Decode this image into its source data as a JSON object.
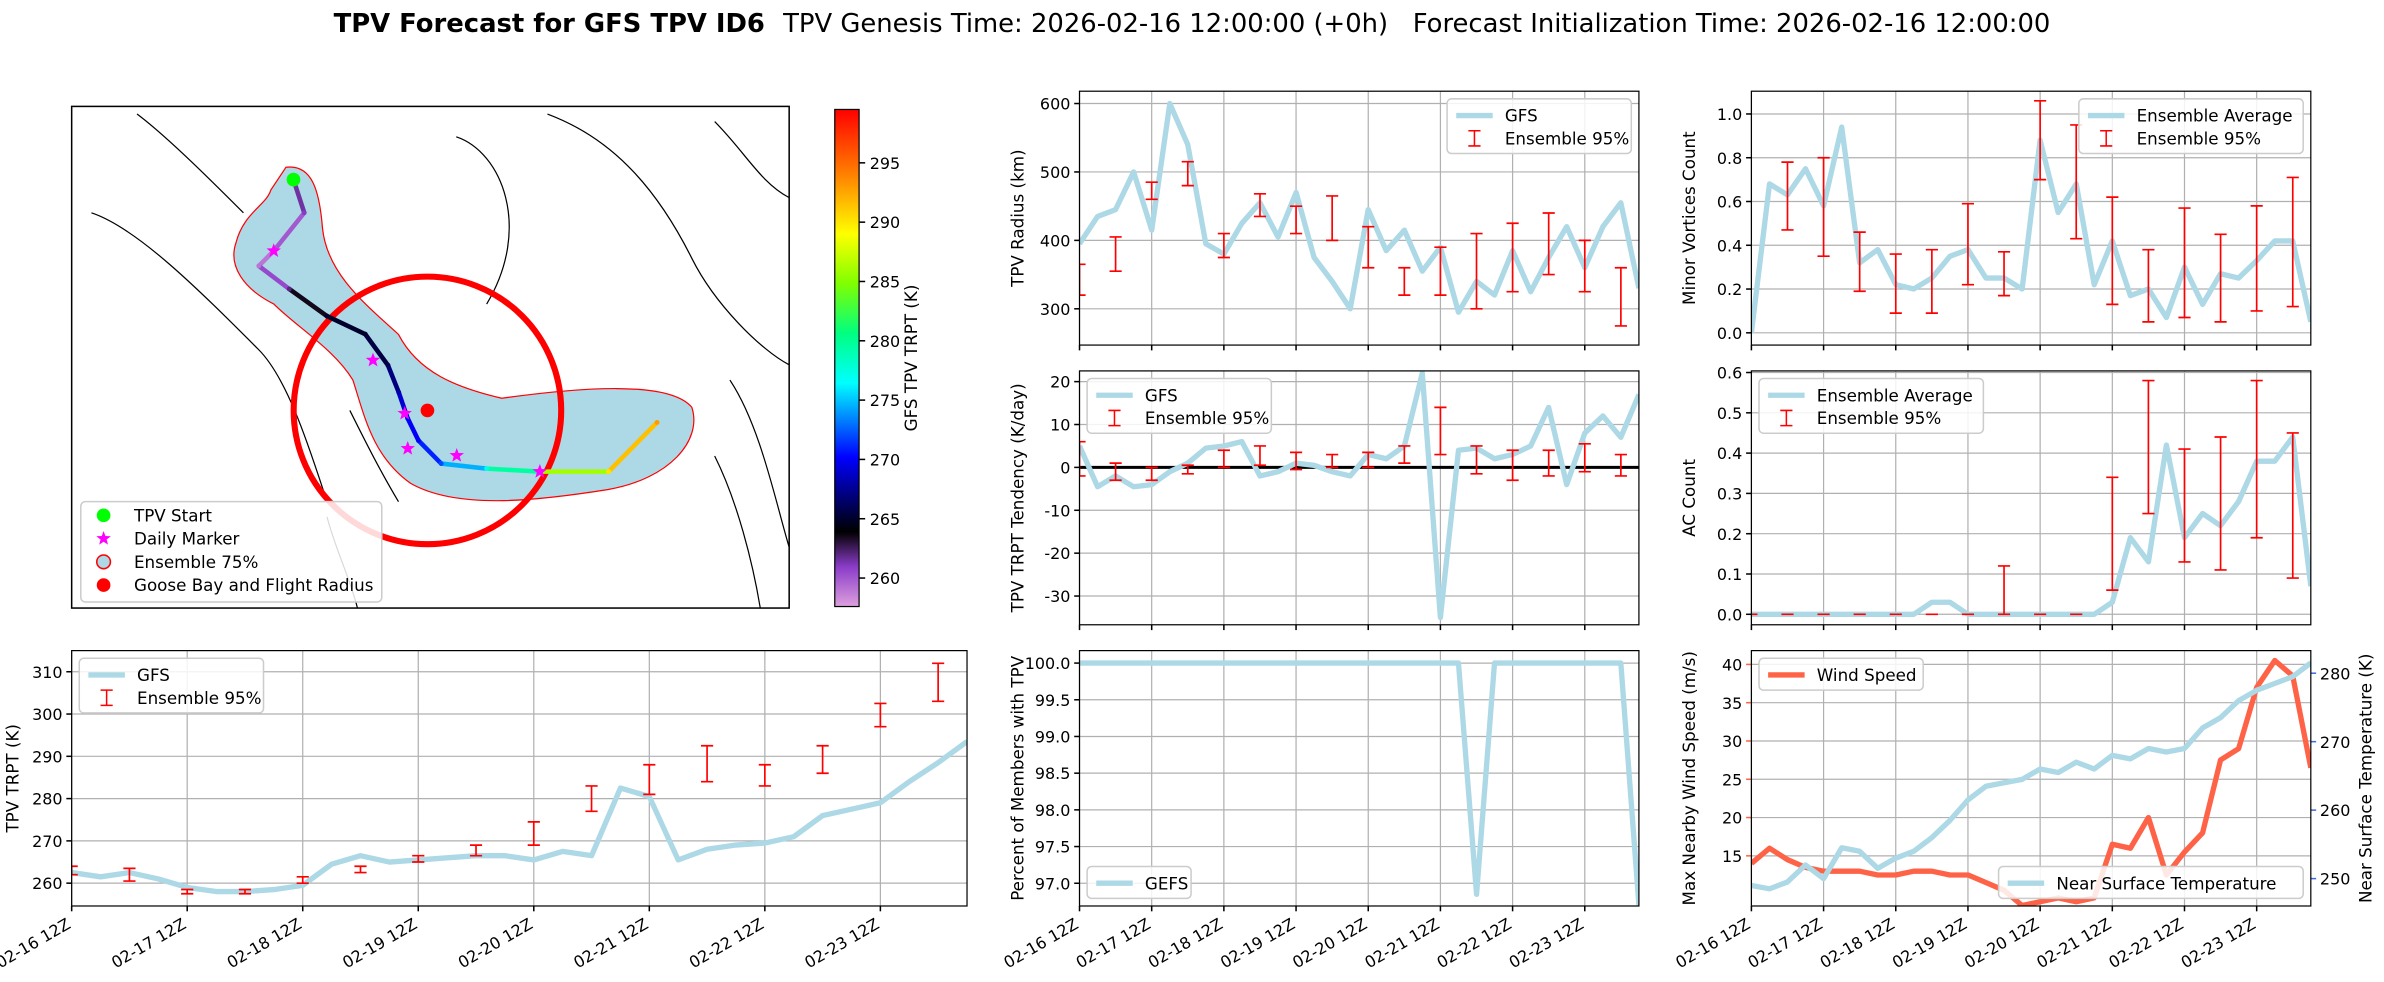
{
  "title": "TPV Forecast for GFS TPV ID6",
  "subtitle": "TPV Genesis Time: 2026-02-16 12:00:00 (+0h)   Forecast Initialization Time: 2026-02-16 12:00:00",
  "chart_data": [
    {
      "type": "track_map",
      "xlim": [
        -130,
        -10
      ],
      "ylim": [
        25,
        75
      ],
      "lon": [
        -92.9,
        -91.1,
        -96.2,
        -98.7,
        -93.6,
        -87.3,
        -80.9,
        -77.1,
        -75.3,
        -73.8,
        -72.0,
        -68.2,
        -60.6,
        -51.7,
        -40.2,
        -32.1
      ],
      "lat": [
        67.7,
        64.4,
        60.6,
        59.1,
        56.8,
        54.1,
        52.3,
        49.2,
        46.5,
        43.9,
        41.7,
        39.4,
        38.9,
        38.6,
        38.6,
        43.5
      ],
      "values": [
        262,
        261,
        259,
        259,
        262,
        265,
        265,
        266,
        268,
        270,
        270,
        272,
        277,
        282,
        290,
        293
      ],
      "markers": {
        "lon": [
          -96.2,
          -79.6,
          -74.3,
          -73.8,
          -65.6,
          -51.7
        ],
        "lat": [
          60.6,
          49.7,
          44.4,
          40.9,
          40.2,
          38.6
        ]
      },
      "goose_bay": {
        "lon": -70.5,
        "lat": 44.7
      },
      "legend_labels": [
        "TPV Start",
        "Daily Marker",
        "Ensemble 75%",
        "Goose Bay and Flight Radius"
      ],
      "colorbar": {
        "label": "GFS TPV TRPT (K)",
        "lim": [
          257.6,
          299.5
        ],
        "ticks": [
          260,
          265,
          270,
          275,
          280,
          285,
          290,
          295
        ]
      }
    },
    {
      "type": "line",
      "ylabel": "TPV TRPT (K)",
      "xlim": [
        0,
        186
      ],
      "ylim": [
        254.6,
        315
      ],
      "yticks": [
        260,
        270,
        280,
        290,
        300,
        310
      ],
      "xticks": [
        {
          "value": 0,
          "label": "02-16 12Z"
        },
        {
          "value": 24,
          "label": "02-17 12Z"
        },
        {
          "value": 48,
          "label": "02-18 12Z"
        },
        {
          "value": 72,
          "label": "02-19 12Z"
        },
        {
          "value": 96,
          "label": "02-20 12Z"
        },
        {
          "value": 120,
          "label": "02-21 12Z"
        },
        {
          "value": 144,
          "label": "02-22 12Z"
        },
        {
          "value": 168,
          "label": "02-23 12Z"
        }
      ],
      "grid": true,
      "legend": "upper left",
      "x": [
        0,
        6,
        12,
        18,
        24,
        30,
        36,
        42,
        48,
        54,
        60,
        66,
        72,
        78,
        84,
        90,
        96,
        102,
        108,
        114,
        120,
        126,
        132,
        138,
        144,
        150,
        156,
        162,
        168,
        174,
        180,
        186
      ],
      "series": [
        {
          "name": "GFS",
          "color": "#add8e6",
          "values": [
            262.5,
            261.5,
            262.5,
            261,
            259,
            258,
            258,
            258.5,
            259.5,
            264.5,
            266.5,
            265,
            265.5,
            266,
            266.5,
            266.5,
            265.5,
            267.5,
            266.5,
            282.5,
            280.5,
            265.5,
            268,
            269,
            269.5,
            271,
            276,
            277.5,
            279,
            284,
            288.5,
            293.5
          ]
        }
      ],
      "ensemble": {
        "name": "Ensemble 95%",
        "color": "#ff0000",
        "x": [
          0,
          12,
          24,
          36,
          48,
          60,
          72,
          84,
          96,
          108,
          120,
          132,
          144,
          156,
          168,
          180
        ],
        "low": [
          262,
          260.5,
          257.5,
          257.5,
          260,
          262.5,
          265,
          266.5,
          269,
          277,
          281,
          284,
          283,
          286,
          297,
          303
        ],
        "high": [
          264,
          263.5,
          258.5,
          258.5,
          261.5,
          264,
          266.5,
          269,
          274.5,
          283,
          288,
          292.5,
          288,
          292.5,
          302.5,
          312
        ]
      }
    },
    {
      "type": "line",
      "ylabel": "TPV Radius (km)",
      "xlim": [
        0,
        186
      ],
      "ylim": [
        247,
        618
      ],
      "yticks": [
        300,
        400,
        500,
        600
      ],
      "xticks": [
        0,
        24,
        48,
        72,
        96,
        120,
        144,
        168
      ],
      "grid": true,
      "legend": "upper right",
      "x": [
        0,
        6,
        12,
        18,
        24,
        30,
        36,
        42,
        48,
        54,
        60,
        66,
        72,
        78,
        84,
        90,
        96,
        102,
        108,
        114,
        120,
        126,
        132,
        138,
        144,
        150,
        156,
        162,
        168,
        174,
        180,
        186
      ],
      "series": [
        {
          "name": "GFS",
          "color": "#add8e6",
          "values": [
            395,
            435,
            445,
            500,
            415,
            600,
            540,
            395,
            380,
            425,
            455,
            405,
            470,
            375,
            340,
            300,
            445,
            385,
            415,
            355,
            390,
            295,
            340,
            320,
            385,
            325,
            375,
            420,
            360,
            420,
            455,
            330
          ]
        }
      ],
      "ensemble": {
        "name": "Ensemble 95%",
        "color": "#ff0000",
        "x": [
          0,
          12,
          24,
          36,
          48,
          60,
          72,
          84,
          96,
          108,
          120,
          132,
          144,
          156,
          168,
          180
        ],
        "low": [
          320,
          355,
          460,
          480,
          375,
          435,
          410,
          400,
          360,
          320,
          320,
          300,
          325,
          350,
          325,
          275
        ],
        "high": [
          365,
          405,
          485,
          515,
          410,
          468,
          450,
          465,
          420,
          360,
          390,
          410,
          425,
          440,
          400,
          360
        ]
      }
    },
    {
      "type": "line",
      "ylabel": "TPV TRPT Tendency (K/day)",
      "xlim": [
        0,
        186
      ],
      "ylim": [
        -36.7,
        22.5
      ],
      "yticks": [
        -30,
        -20,
        -10,
        0,
        10,
        20
      ],
      "xticks": [
        0,
        24,
        48,
        72,
        96,
        120,
        144,
        168
      ],
      "grid": true,
      "legend": "upper left",
      "hline": 0,
      "x": [
        0,
        6,
        12,
        18,
        24,
        30,
        36,
        42,
        48,
        54,
        60,
        66,
        72,
        78,
        84,
        90,
        96,
        102,
        108,
        114,
        120,
        126,
        132,
        138,
        144,
        150,
        156,
        162,
        168,
        174,
        180,
        186
      ],
      "series": [
        {
          "name": "GFS",
          "color": "#add8e6",
          "values": [
            5,
            -4.5,
            -2,
            -4.5,
            -4,
            -1,
            1,
            4.5,
            5,
            6,
            -2,
            -1,
            1,
            0.5,
            -1,
            -2,
            3,
            2,
            5,
            22,
            -35,
            4,
            4.5,
            2,
            3,
            5,
            14,
            -4,
            8,
            12,
            7,
            17
          ]
        }
      ],
      "ensemble": {
        "name": "Ensemble 95%",
        "color": "#ff0000",
        "x": [
          0,
          12,
          24,
          36,
          48,
          60,
          72,
          84,
          96,
          108,
          120,
          132,
          144,
          156,
          168,
          180
        ],
        "low": [
          -2,
          -3,
          -3,
          -1.5,
          0,
          0.5,
          -0.5,
          0,
          0,
          1,
          3,
          -1.5,
          -3,
          -2,
          -1,
          -2
        ],
        "high": [
          6,
          1,
          0,
          0.5,
          4,
          5,
          3.5,
          3,
          3.5,
          5,
          14,
          5,
          4,
          4,
          5.5,
          3
        ]
      }
    },
    {
      "type": "line",
      "ylabel": "Percent of Members with TPV",
      "xlim": [
        0,
        186
      ],
      "ylim": [
        96.69,
        100.17
      ],
      "yticks": [
        {
          "value": 97,
          "label": "97.0"
        },
        97.5,
        {
          "value": 98,
          "label": "98.0"
        },
        98.5,
        {
          "value": 99,
          "label": "99.0"
        },
        99.5,
        {
          "value": 100,
          "label": "100.0"
        }
      ],
      "xticks": [
        {
          "value": 0,
          "label": "02-16 12Z"
        },
        {
          "value": 24,
          "label": "02-17 12Z"
        },
        {
          "value": 48,
          "label": "02-18 12Z"
        },
        {
          "value": 72,
          "label": "02-19 12Z"
        },
        {
          "value": 96,
          "label": "02-20 12Z"
        },
        {
          "value": 120,
          "label": "02-21 12Z"
        },
        {
          "value": 144,
          "label": "02-22 12Z"
        },
        {
          "value": 168,
          "label": "02-23 12Z"
        }
      ],
      "grid": true,
      "legend": "lower left",
      "x": [
        0,
        6,
        12,
        18,
        24,
        30,
        36,
        42,
        48,
        54,
        60,
        66,
        72,
        78,
        84,
        90,
        96,
        102,
        108,
        114,
        120,
        126,
        132,
        138,
        144,
        150,
        156,
        162,
        168,
        174,
        180,
        186
      ],
      "series": [
        {
          "name": "GEFS",
          "color": "#add8e6",
          "values": [
            100,
            100,
            100,
            100,
            100,
            100,
            100,
            100,
            100,
            100,
            100,
            100,
            100,
            100,
            100,
            100,
            100,
            100,
            100,
            100,
            100,
            100,
            96.85,
            100,
            100,
            100,
            100,
            100,
            100,
            100,
            100,
            96.7
          ]
        }
      ]
    },
    {
      "type": "line",
      "ylabel": "Minor Vortices Count",
      "xlim": [
        0,
        186
      ],
      "ylim": [
        -0.056,
        1.104
      ],
      "yticks": [
        {
          "value": 0,
          "label": "0.0"
        },
        0.2,
        0.4,
        0.6,
        0.8,
        {
          "value": 1,
          "label": "1.0"
        }
      ],
      "xticks": [
        0,
        24,
        48,
        72,
        96,
        120,
        144,
        168
      ],
      "grid": true,
      "legend": "upper right",
      "x": [
        0,
        6,
        12,
        18,
        24,
        30,
        36,
        42,
        48,
        54,
        60,
        66,
        72,
        78,
        84,
        90,
        96,
        102,
        108,
        114,
        120,
        126,
        132,
        138,
        144,
        150,
        156,
        162,
        168,
        174,
        180,
        186
      ],
      "series": [
        {
          "name": "Ensemble Average",
          "color": "#add8e6",
          "values": [
            0,
            0.68,
            0.63,
            0.75,
            0.58,
            0.94,
            0.32,
            0.38,
            0.22,
            0.2,
            0.25,
            0.35,
            0.38,
            0.25,
            0.25,
            0.2,
            0.88,
            0.55,
            0.68,
            0.22,
            0.42,
            0.17,
            0.2,
            0.07,
            0.3,
            0.13,
            0.27,
            0.25,
            0.33,
            0.42,
            0.42,
            0.05
          ]
        }
      ],
      "ensemble": {
        "name": "Ensemble 95%",
        "color": "#ff0000",
        "x": [
          12,
          24,
          36,
          48,
          60,
          72,
          84,
          96,
          108,
          120,
          132,
          144,
          156,
          168,
          180
        ],
        "low": [
          0.47,
          0.35,
          0.19,
          0.09,
          0.09,
          0.22,
          0.17,
          0.7,
          0.43,
          0.13,
          0.05,
          0.07,
          0.05,
          0.1,
          0.12
        ],
        "high": [
          0.78,
          0.8,
          0.46,
          0.36,
          0.38,
          0.59,
          0.37,
          1.06,
          0.95,
          0.62,
          0.38,
          0.57,
          0.45,
          0.58,
          0.71
        ]
      }
    },
    {
      "type": "line",
      "ylabel": "AC Count",
      "xlim": [
        0,
        186
      ],
      "ylim": [
        -0.026,
        0.604
      ],
      "yticks": [
        {
          "value": 0,
          "label": "0.0"
        },
        0.1,
        0.2,
        0.3,
        0.4,
        0.5,
        0.6
      ],
      "xticks": [
        0,
        24,
        48,
        72,
        96,
        120,
        144,
        168
      ],
      "grid": true,
      "legend": "upper left",
      "x": [
        0,
        6,
        12,
        18,
        24,
        30,
        36,
        42,
        48,
        54,
        60,
        66,
        72,
        78,
        84,
        90,
        96,
        102,
        108,
        114,
        120,
        126,
        132,
        138,
        144,
        150,
        156,
        162,
        168,
        174,
        180,
        186
      ],
      "series": [
        {
          "name": "Ensemble Average",
          "color": "#add8e6",
          "values": [
            0,
            0,
            0,
            0,
            0,
            0,
            0,
            0,
            0,
            0,
            0.03,
            0.03,
            0,
            0,
            0,
            0,
            0,
            0,
            0,
            0,
            0.03,
            0.19,
            0.13,
            0.42,
            0.19,
            0.25,
            0.22,
            0.28,
            0.38,
            0.38,
            0.44,
            0.07
          ]
        }
      ],
      "ensemble": {
        "name": "Ensemble 95%",
        "color": "#ff0000",
        "x": [
          0,
          12,
          24,
          36,
          48,
          60,
          72,
          84,
          96,
          108,
          120,
          132,
          144,
          156,
          168,
          180
        ],
        "low": [
          0,
          0,
          0,
          0,
          0,
          0,
          0,
          0,
          0,
          0,
          0.06,
          0.25,
          0.13,
          0.11,
          0.19,
          0.09
        ],
        "high": [
          0,
          0,
          0,
          0,
          0,
          0,
          0,
          0.12,
          0,
          0,
          0.34,
          0.58,
          0.41,
          0.44,
          0.58,
          0.45
        ]
      }
    },
    {
      "type": "line",
      "ylabel": "Max Nearby Wind Speed (m/s)",
      "ylabel_color": "#ff6347",
      "y2label": "Near Surface Temperature (K)",
      "y2label_color": "#4169e1",
      "xlim": [
        0,
        186
      ],
      "ylim": [
        8.45,
        41.8
      ],
      "yticks": [
        15,
        20,
        25,
        30,
        35,
        40
      ],
      "y2lim": [
        246,
        283.3
      ],
      "y2ticks": [
        250,
        260,
        270,
        280
      ],
      "xticks": [
        {
          "value": 0,
          "label": "02-16 12Z"
        },
        {
          "value": 24,
          "label": "02-17 12Z"
        },
        {
          "value": 48,
          "label": "02-18 12Z"
        },
        {
          "value": 72,
          "label": "02-19 12Z"
        },
        {
          "value": 96,
          "label": "02-20 12Z"
        },
        {
          "value": 120,
          "label": "02-21 12Z"
        },
        {
          "value": 144,
          "label": "02-22 12Z"
        },
        {
          "value": 168,
          "label": "02-23 12Z"
        }
      ],
      "grid": true,
      "x": [
        0,
        6,
        12,
        18,
        24,
        30,
        36,
        42,
        48,
        54,
        60,
        66,
        72,
        78,
        84,
        90,
        96,
        102,
        108,
        114,
        120,
        126,
        132,
        138,
        144,
        150,
        156,
        162,
        168,
        174,
        180,
        186
      ],
      "series": [
        {
          "name": "Wind Speed",
          "color": "#ff6347",
          "legend": "upper left",
          "values": [
            14,
            16,
            14.5,
            13.5,
            13,
            13,
            13,
            12.5,
            12.5,
            13,
            13,
            12.5,
            12.5,
            11.5,
            10.5,
            8.5,
            9,
            9.5,
            9,
            9.5,
            16.5,
            16,
            20,
            12.5,
            15.5,
            18,
            27.5,
            29,
            37,
            40.5,
            38.5,
            26.5
          ]
        },
        {
          "name": "Near Surface Temperature",
          "color": "#add8e6",
          "axis": "y2",
          "legend": "lower right",
          "values": [
            249,
            248.5,
            249.5,
            252,
            250,
            254.5,
            254,
            251.5,
            253,
            254,
            256,
            258.5,
            261.5,
            263.5,
            264,
            264.5,
            266,
            265.5,
            267,
            266,
            268,
            267.5,
            269,
            268.5,
            269,
            272,
            273.5,
            276,
            277.5,
            278.5,
            279.5,
            281.5
          ]
        }
      ]
    }
  ]
}
